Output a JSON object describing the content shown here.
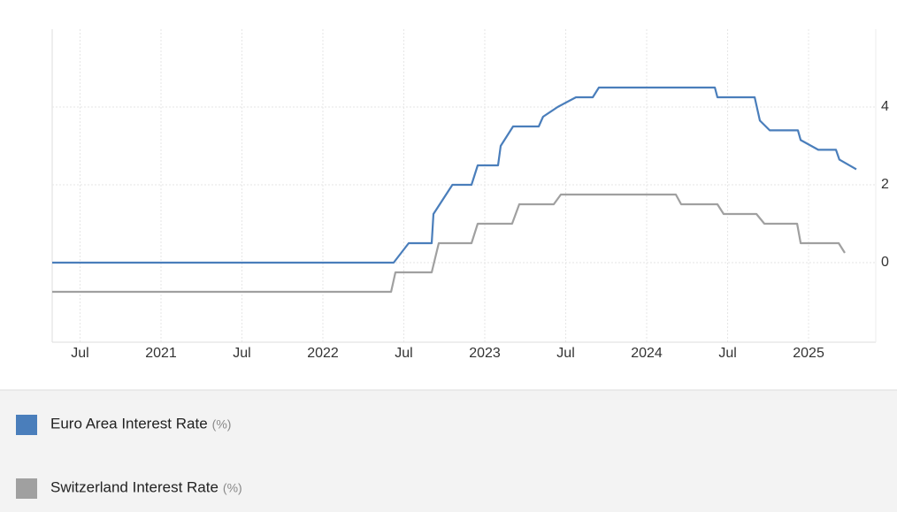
{
  "chart_data": {
    "type": "line",
    "xlim": [
      2020.328,
      2025.415
    ],
    "xticks": [
      {
        "value": 2020.5,
        "label": "Jul"
      },
      2021,
      {
        "value": 2021.5,
        "label": "Jul"
      },
      2022,
      {
        "value": 2022.5,
        "label": "Jul"
      },
      2023,
      {
        "value": 2023.5,
        "label": "Jul"
      },
      2024,
      {
        "value": 2024.5,
        "label": "Jul"
      },
      2025
    ],
    "ylim": [
      -2,
      6
    ],
    "yticks": [
      0,
      2,
      4
    ],
    "grid": true,
    "series": [
      {
        "name": "Euro Area Interest Rate",
        "unit": "(%)",
        "color": "#4a7ebb",
        "x": [
          2020.328,
          2022.437,
          2022.53,
          2022.672,
          2022.683,
          2022.8,
          2022.918,
          2022.956,
          2023.082,
          2023.098,
          2023.175,
          2023.333,
          2023.36,
          2023.45,
          2023.563,
          2023.667,
          2023.705,
          2024.421,
          2024.437,
          2024.667,
          2024.699,
          2024.76,
          2024.934,
          2024.951,
          2025.06,
          2025.169,
          2025.19,
          2025.295
        ],
        "values": [
          0,
          0,
          0.5,
          0.5,
          1.25,
          2.0,
          2.0,
          2.5,
          2.5,
          3.0,
          3.5,
          3.5,
          3.75,
          4.0,
          4.25,
          4.25,
          4.5,
          4.5,
          4.25,
          4.25,
          3.65,
          3.4,
          3.4,
          3.15,
          2.9,
          2.9,
          2.65,
          2.4
        ]
      },
      {
        "name": "Switzerland Interest Rate",
        "unit": "(%)",
        "color": "#a0a0a0",
        "x": [
          2020.328,
          2022.421,
          2022.448,
          2022.672,
          2022.716,
          2022.918,
          2022.956,
          2023.169,
          2023.213,
          2023.426,
          2023.47,
          2024.18,
          2024.213,
          2024.437,
          2024.475,
          2024.678,
          2024.727,
          2024.929,
          2024.951,
          2025.186,
          2025.224
        ],
        "values": [
          -0.75,
          -0.75,
          -0.25,
          -0.25,
          0.5,
          0.5,
          1.0,
          1.0,
          1.5,
          1.5,
          1.75,
          1.75,
          1.5,
          1.5,
          1.25,
          1.25,
          1.0,
          1.0,
          0.5,
          0.5,
          0.25
        ]
      }
    ]
  }
}
